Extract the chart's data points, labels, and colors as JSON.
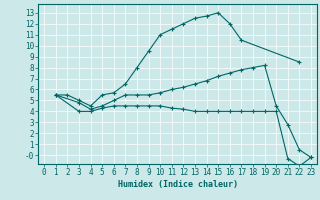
{
  "xlabel": "Humidex (Indice chaleur)",
  "bg_color": "#cce8e8",
  "grid_color": "#ffffff",
  "line_color": "#006666",
  "xlim": [
    -0.5,
    23.5
  ],
  "ylim": [
    -0.8,
    13.8
  ],
  "yticks": [
    0,
    1,
    2,
    3,
    4,
    5,
    6,
    7,
    8,
    9,
    10,
    11,
    12,
    13
  ],
  "ytick_labels": [
    "-0",
    "1",
    "2",
    "3",
    "4",
    "5",
    "6",
    "7",
    "8",
    "9",
    "10",
    "11",
    "12",
    "13"
  ],
  "xticks": [
    0,
    1,
    2,
    3,
    4,
    5,
    6,
    7,
    8,
    9,
    10,
    11,
    12,
    13,
    14,
    15,
    16,
    17,
    18,
    19,
    20,
    21,
    22,
    23
  ],
  "line1_x": [
    1,
    2,
    3,
    4,
    5,
    6,
    7,
    8,
    9,
    10,
    11,
    12,
    13,
    14,
    15,
    16,
    17,
    22
  ],
  "line1_y": [
    5.5,
    5.5,
    5.0,
    4.5,
    5.5,
    5.7,
    6.5,
    8.0,
    9.5,
    11.0,
    11.5,
    12.0,
    12.5,
    12.7,
    13.0,
    12.0,
    10.5,
    8.5
  ],
  "line2_x": [
    1,
    3,
    4,
    5,
    6,
    7,
    8,
    9,
    10,
    11,
    12,
    13,
    14,
    15,
    16,
    17,
    18,
    19,
    20,
    21,
    22,
    23
  ],
  "line2_y": [
    5.5,
    4.8,
    4.2,
    4.5,
    5.0,
    5.5,
    5.5,
    5.5,
    5.7,
    6.0,
    6.2,
    6.5,
    6.8,
    7.2,
    7.5,
    7.8,
    8.0,
    8.2,
    4.5,
    2.8,
    0.5,
    -0.2
  ],
  "line3_x": [
    1,
    3,
    4,
    5,
    6,
    7,
    8,
    9,
    10,
    11,
    12,
    13,
    14,
    15,
    16,
    17,
    18,
    19,
    20,
    21,
    22,
    23
  ],
  "line3_y": [
    5.5,
    4.0,
    4.0,
    4.3,
    4.5,
    4.5,
    4.5,
    4.5,
    4.5,
    4.3,
    4.2,
    4.0,
    4.0,
    4.0,
    4.0,
    4.0,
    4.0,
    4.0,
    4.0,
    -0.3,
    -1.0,
    -0.2
  ]
}
